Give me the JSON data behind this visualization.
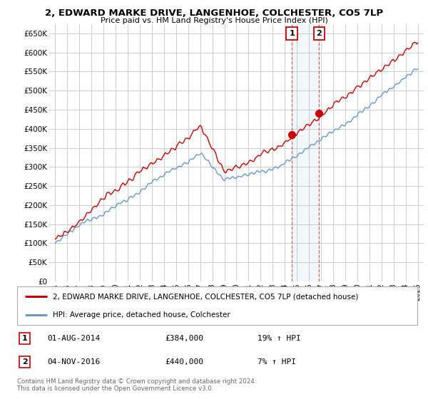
{
  "title": "2, EDWARD MARKE DRIVE, LANGENHOE, COLCHESTER, CO5 7LP",
  "subtitle": "Price paid vs. HM Land Registry's House Price Index (HPI)",
  "ylabel_ticks": [
    "£0",
    "£50K",
    "£100K",
    "£150K",
    "£200K",
    "£250K",
    "£300K",
    "£350K",
    "£400K",
    "£450K",
    "£500K",
    "£550K",
    "£600K",
    "£650K"
  ],
  "ytick_values": [
    0,
    50000,
    100000,
    150000,
    200000,
    250000,
    300000,
    350000,
    400000,
    450000,
    500000,
    550000,
    600000,
    650000
  ],
  "ylim": [
    0,
    675000
  ],
  "xlim_start": 1994.5,
  "xlim_end": 2025.5,
  "xtick_years": [
    1995,
    1996,
    1997,
    1998,
    1999,
    2000,
    2001,
    2002,
    2003,
    2004,
    2005,
    2006,
    2007,
    2008,
    2009,
    2010,
    2011,
    2012,
    2013,
    2014,
    2015,
    2016,
    2017,
    2018,
    2019,
    2020,
    2021,
    2022,
    2023,
    2024,
    2025
  ],
  "property_color": "#cc0000",
  "hpi_color": "#6699cc",
  "sale1_x": 2014.58,
  "sale1_y": 384000,
  "sale2_x": 2016.84,
  "sale2_y": 440000,
  "legend_property": "2, EDWARD MARKE DRIVE, LANGENHOE, COLCHESTER, CO5 7LP (detached house)",
  "legend_hpi": "HPI: Average price, detached house, Colchester",
  "footer": "Contains HM Land Registry data © Crown copyright and database right 2024.\nThis data is licensed under the Open Government Licence v3.0.",
  "background_color": "#ffffff",
  "grid_color": "#cccccc"
}
